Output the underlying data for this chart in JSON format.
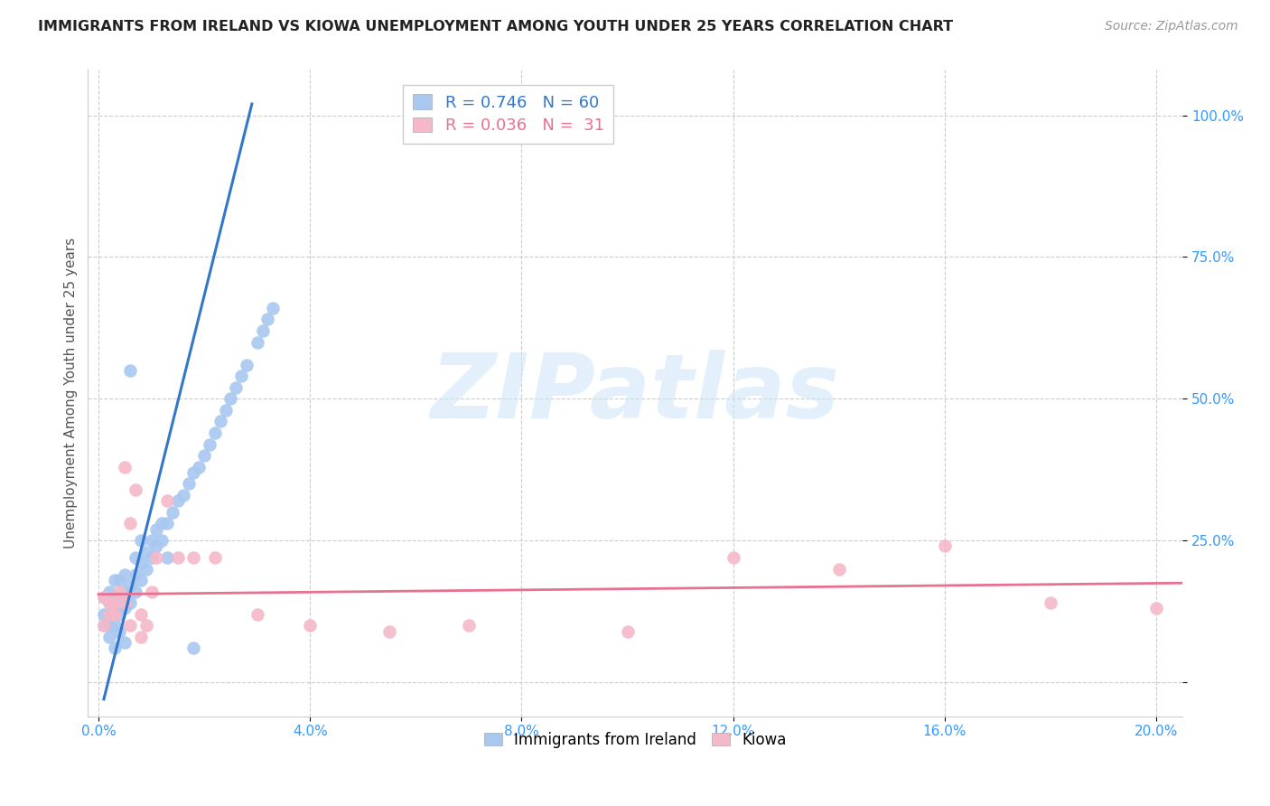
{
  "title": "IMMIGRANTS FROM IRELAND VS KIOWA UNEMPLOYMENT AMONG YOUTH UNDER 25 YEARS CORRELATION CHART",
  "source": "Source: ZipAtlas.com",
  "ylabel": "Unemployment Among Youth under 25 years",
  "yticks": [
    0.0,
    0.25,
    0.5,
    0.75,
    1.0
  ],
  "ytick_labels": [
    "",
    "25.0%",
    "50.0%",
    "75.0%",
    "100.0%"
  ],
  "xticks": [
    0.0,
    0.04,
    0.08,
    0.12,
    0.16,
    0.2
  ],
  "xtick_labels": [
    "0.0%",
    "4.0%",
    "8.0%",
    "12.0%",
    "16.0%",
    "20.0%"
  ],
  "xlim": [
    -0.002,
    0.205
  ],
  "ylim": [
    -0.06,
    1.08
  ],
  "legend1_label": "R = 0.746   N = 60",
  "legend2_label": "R = 0.036   N =  31",
  "legend_series1": "Immigrants from Ireland",
  "legend_series2": "Kiowa",
  "watermark": "ZIPatlas",
  "blue_color": "#a8c8f0",
  "pink_color": "#f5b8c8",
  "line_blue": "#3377cc",
  "line_pink": "#e87090",
  "blue_scatter_x": [
    0.001,
    0.001,
    0.001,
    0.002,
    0.002,
    0.002,
    0.002,
    0.003,
    0.003,
    0.003,
    0.003,
    0.004,
    0.004,
    0.004,
    0.005,
    0.005,
    0.005,
    0.006,
    0.006,
    0.007,
    0.007,
    0.007,
    0.008,
    0.008,
    0.009,
    0.009,
    0.01,
    0.01,
    0.011,
    0.011,
    0.012,
    0.012,
    0.013,
    0.014,
    0.015,
    0.016,
    0.017,
    0.018,
    0.019,
    0.02,
    0.021,
    0.022,
    0.023,
    0.024,
    0.025,
    0.026,
    0.027,
    0.028,
    0.03,
    0.031,
    0.032,
    0.033,
    0.002,
    0.003,
    0.004,
    0.005,
    0.006,
    0.008,
    0.013,
    0.018
  ],
  "blue_scatter_y": [
    0.1,
    0.12,
    0.15,
    0.1,
    0.12,
    0.14,
    0.16,
    0.1,
    0.13,
    0.15,
    0.18,
    0.12,
    0.15,
    0.18,
    0.13,
    0.16,
    0.19,
    0.14,
    0.17,
    0.16,
    0.19,
    0.22,
    0.18,
    0.21,
    0.2,
    0.23,
    0.22,
    0.25,
    0.24,
    0.27,
    0.25,
    0.28,
    0.28,
    0.3,
    0.32,
    0.33,
    0.35,
    0.37,
    0.38,
    0.4,
    0.42,
    0.44,
    0.46,
    0.48,
    0.5,
    0.52,
    0.54,
    0.56,
    0.6,
    0.62,
    0.64,
    0.66,
    0.08,
    0.06,
    0.09,
    0.07,
    0.55,
    0.25,
    0.22,
    0.06
  ],
  "pink_scatter_x": [
    0.001,
    0.001,
    0.002,
    0.002,
    0.003,
    0.003,
    0.004,
    0.005,
    0.005,
    0.006,
    0.007,
    0.008,
    0.009,
    0.01,
    0.011,
    0.013,
    0.015,
    0.018,
    0.022,
    0.03,
    0.04,
    0.055,
    0.07,
    0.1,
    0.12,
    0.14,
    0.16,
    0.18,
    0.2,
    0.006,
    0.008
  ],
  "pink_scatter_y": [
    0.15,
    0.1,
    0.12,
    0.14,
    0.12,
    0.14,
    0.16,
    0.38,
    0.14,
    0.28,
    0.34,
    0.12,
    0.1,
    0.16,
    0.22,
    0.32,
    0.22,
    0.22,
    0.22,
    0.12,
    0.1,
    0.09,
    0.1,
    0.09,
    0.22,
    0.2,
    0.24,
    0.14,
    0.13,
    0.1,
    0.08
  ],
  "blue_line_x": [
    0.001,
    0.029
  ],
  "blue_line_y": [
    -0.03,
    1.02
  ],
  "pink_line_x": [
    0.0,
    0.205
  ],
  "pink_line_y": [
    0.155,
    0.175
  ],
  "title_fontsize": 11.5,
  "source_fontsize": 10,
  "legend_fontsize": 13,
  "tick_fontsize": 11,
  "ylabel_fontsize": 11
}
